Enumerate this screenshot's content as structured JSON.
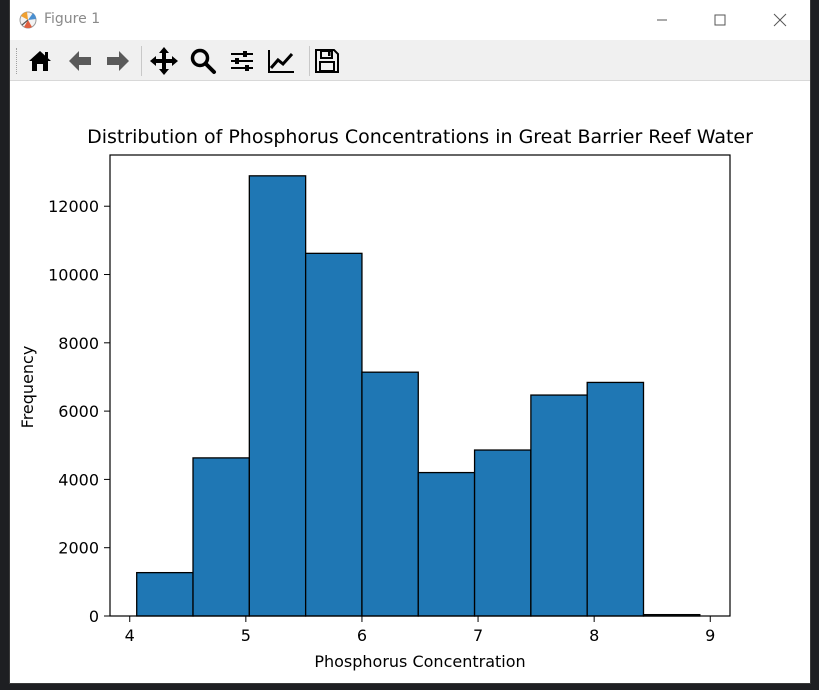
{
  "window": {
    "title": "Figure 1"
  },
  "toolbar": {
    "buttons": [
      {
        "name": "home",
        "icon": "home-icon"
      },
      {
        "name": "back",
        "icon": "arrow-left-icon"
      },
      {
        "name": "forward",
        "icon": "arrow-right-icon"
      },
      {
        "name": "pan",
        "icon": "move-icon"
      },
      {
        "name": "zoom",
        "icon": "magnifier-icon"
      },
      {
        "name": "configure-subplots",
        "icon": "sliders-icon"
      },
      {
        "name": "edit-axis",
        "icon": "line-chart-icon"
      },
      {
        "name": "save",
        "icon": "floppy-disk-icon"
      }
    ]
  },
  "chart_data": {
    "type": "bar",
    "subtype": "histogram",
    "title": "Distribution of Phosphorus Concentrations in Great Barrier Reef Water",
    "xlabel": "Phosphorus Concentration",
    "ylabel": "Frequency",
    "xlim": [
      3.83,
      9.17
    ],
    "ylim": [
      0,
      13500
    ],
    "x_ticks": [
      4,
      5,
      6,
      7,
      8,
      9
    ],
    "y_ticks": [
      0,
      2000,
      4000,
      6000,
      8000,
      10000,
      12000
    ],
    "bin_edges": [
      4.06,
      4.545,
      5.03,
      5.515,
      6.0,
      6.485,
      6.97,
      7.455,
      7.94,
      8.425,
      8.91
    ],
    "values": [
      1270,
      4630,
      12890,
      10620,
      7140,
      4200,
      4860,
      6470,
      6840,
      40
    ],
    "bar_color": "#1f77b4",
    "edge_color": "#000000",
    "grid": false,
    "legend": "none"
  }
}
